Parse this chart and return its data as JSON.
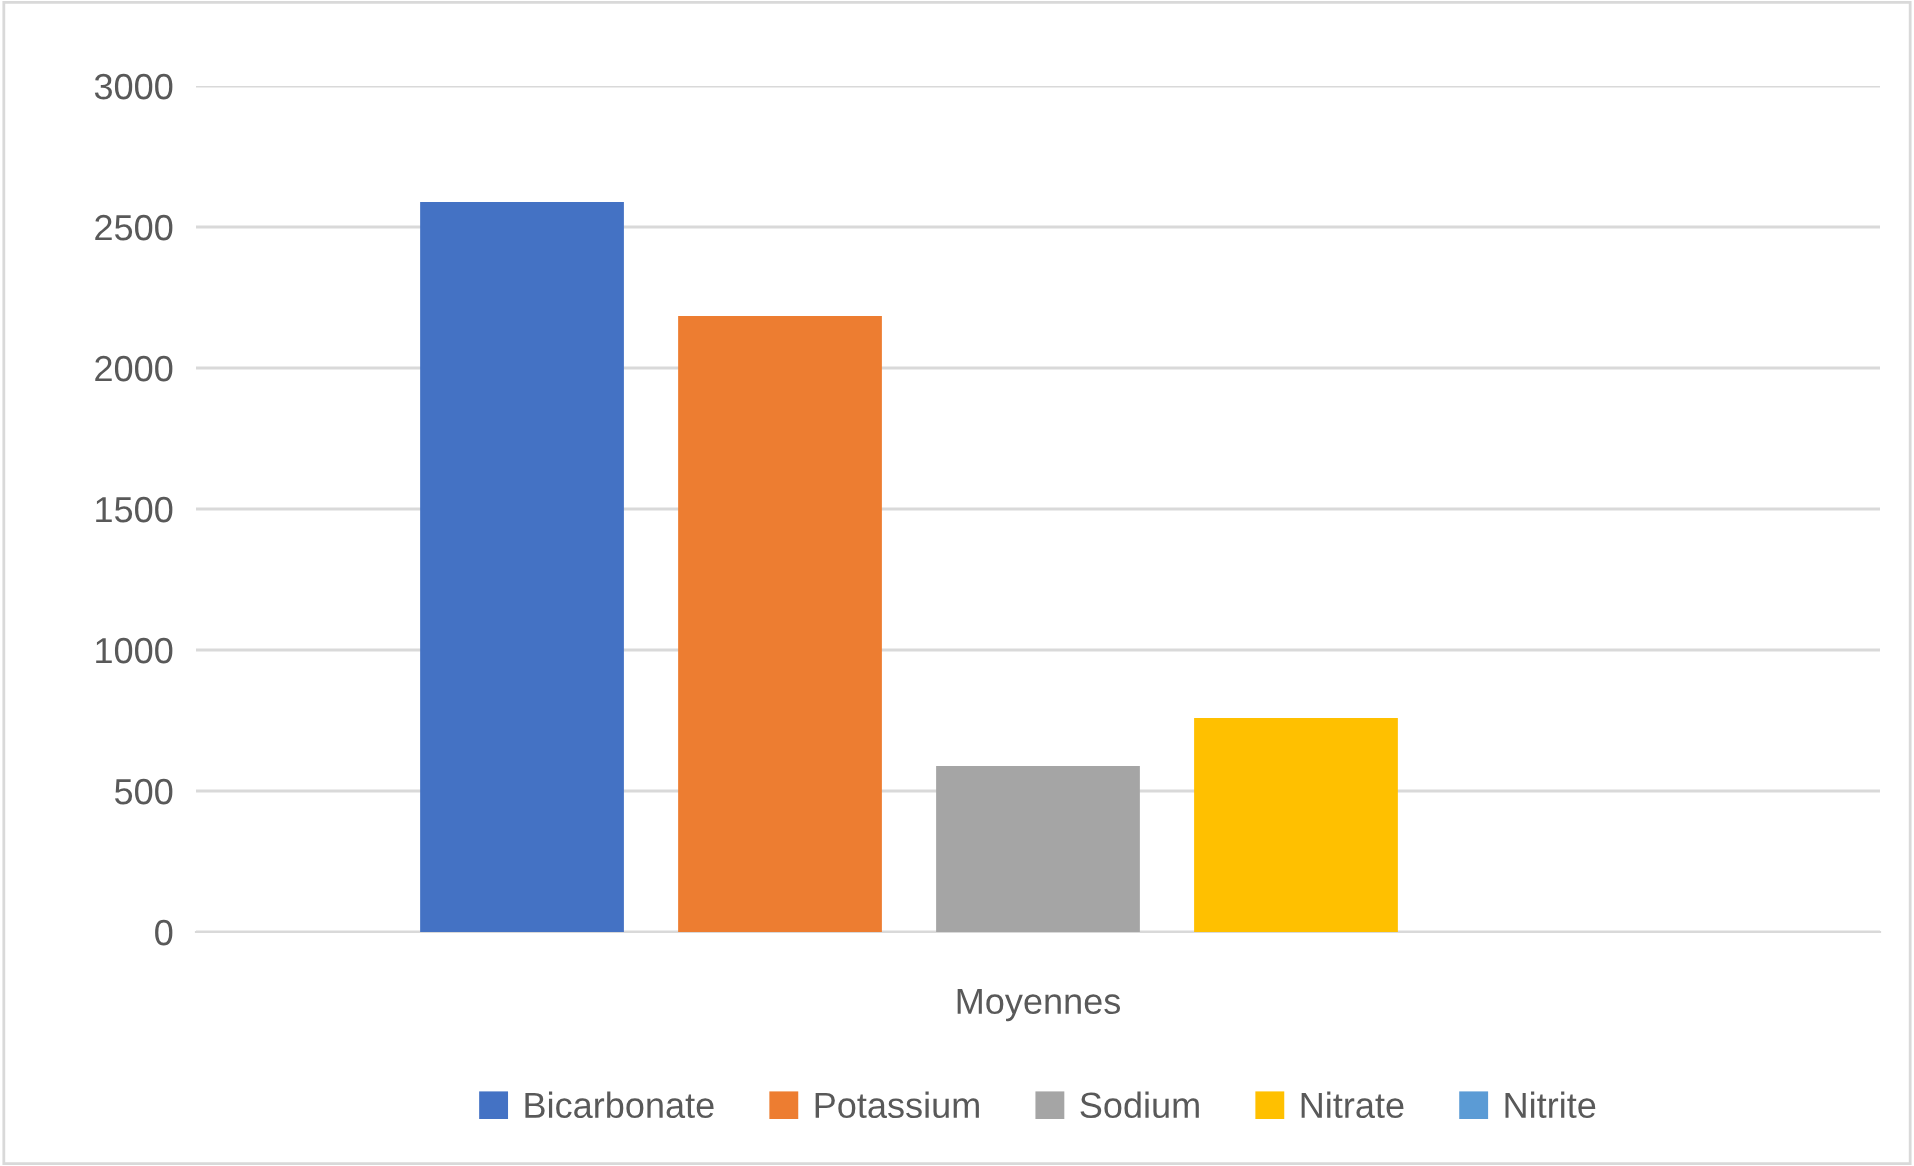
{
  "chart_data": {
    "type": "bar",
    "categories": [
      "Moyennes"
    ],
    "series": [
      {
        "name": "Bicarbonate",
        "color": "#4472c4",
        "values": [
          2589
        ]
      },
      {
        "name": "Potassium",
        "color": "#ed7d31",
        "values": [
          2184
        ]
      },
      {
        "name": "Sodium",
        "color": "#a5a5a5",
        "values": [
          589
        ]
      },
      {
        "name": "Nitrate",
        "color": "#ffc000",
        "values": [
          759
        ]
      },
      {
        "name": "Nitrite",
        "color": "#5b9bd5",
        "values": [
          0
        ]
      }
    ],
    "ylim": [
      0,
      3000
    ],
    "yticks": [
      0,
      500,
      1000,
      1500,
      2000,
      2500,
      3000
    ],
    "grid": "y",
    "legend": "bottom"
  }
}
